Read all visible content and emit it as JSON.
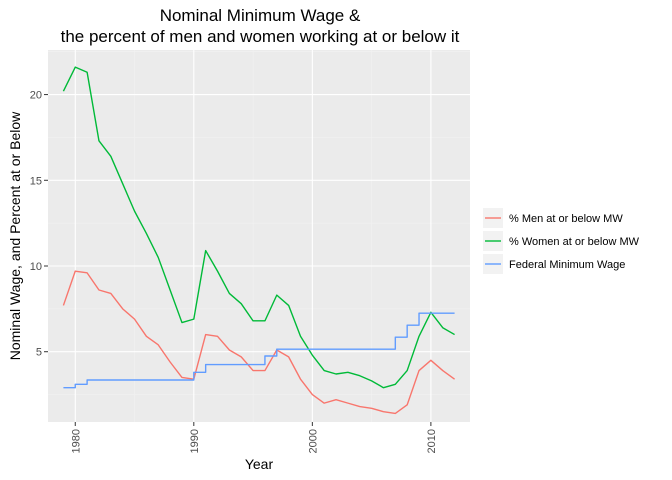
{
  "chart_data": {
    "type": "line",
    "title": [
      "Nominal Minimum Wage &",
      "the percent of men and women working at or below it"
    ],
    "xlabel": "Year",
    "ylabel": "Nominal Wage, and Percent at or Below",
    "xlim": [
      1977.7,
      2013.3
    ],
    "ylim": [
      0.9,
      22.6
    ],
    "x_ticks": [
      1980,
      1990,
      2000,
      2010
    ],
    "y_ticks": [
      5,
      10,
      15,
      20
    ],
    "grid": true,
    "legend_position": "right",
    "series": [
      {
        "name": "% Men at or below MW",
        "color": "#F8766D",
        "step": false,
        "points": [
          [
            1979,
            7.7
          ],
          [
            1980,
            9.7
          ],
          [
            1981,
            9.6
          ],
          [
            1982,
            8.6
          ],
          [
            1983,
            8.4
          ],
          [
            1984,
            7.5
          ],
          [
            1985,
            6.9
          ],
          [
            1986,
            5.9
          ],
          [
            1987,
            5.4
          ],
          [
            1988,
            4.4
          ],
          [
            1989,
            3.5
          ],
          [
            1990,
            3.4
          ],
          [
            1991,
            6.0
          ],
          [
            1992,
            5.9
          ],
          [
            1993,
            5.1
          ],
          [
            1994,
            4.7
          ],
          [
            1995,
            3.9
          ],
          [
            1996,
            3.9
          ],
          [
            1997,
            5.1
          ],
          [
            1998,
            4.7
          ],
          [
            1999,
            3.4
          ],
          [
            2000,
            2.5
          ],
          [
            2001,
            2.0
          ],
          [
            2002,
            2.2
          ],
          [
            2003,
            2.0
          ],
          [
            2004,
            1.8
          ],
          [
            2005,
            1.7
          ],
          [
            2006,
            1.5
          ],
          [
            2007,
            1.4
          ],
          [
            2008,
            1.9
          ],
          [
            2009,
            3.9
          ],
          [
            2010,
            4.5
          ],
          [
            2011,
            3.9
          ],
          [
            2012,
            3.4
          ]
        ]
      },
      {
        "name": "% Women at or below MW",
        "color": "#00BA38",
        "step": false,
        "points": [
          [
            1979,
            20.2
          ],
          [
            1980,
            21.6
          ],
          [
            1981,
            21.3
          ],
          [
            1982,
            17.3
          ],
          [
            1983,
            16.4
          ],
          [
            1984,
            14.8
          ],
          [
            1985,
            13.2
          ],
          [
            1986,
            11.9
          ],
          [
            1987,
            10.5
          ],
          [
            1988,
            8.6
          ],
          [
            1989,
            6.7
          ],
          [
            1990,
            6.9
          ],
          [
            1991,
            10.9
          ],
          [
            1992,
            9.7
          ],
          [
            1993,
            8.4
          ],
          [
            1994,
            7.8
          ],
          [
            1995,
            6.8
          ],
          [
            1996,
            6.8
          ],
          [
            1997,
            8.3
          ],
          [
            1998,
            7.7
          ],
          [
            1999,
            5.9
          ],
          [
            2000,
            4.8
          ],
          [
            2001,
            3.9
          ],
          [
            2002,
            3.7
          ],
          [
            2003,
            3.8
          ],
          [
            2004,
            3.6
          ],
          [
            2005,
            3.3
          ],
          [
            2006,
            2.9
          ],
          [
            2007,
            3.1
          ],
          [
            2008,
            3.9
          ],
          [
            2009,
            5.9
          ],
          [
            2010,
            7.3
          ],
          [
            2011,
            6.4
          ],
          [
            2012,
            6.0
          ]
        ]
      },
      {
        "name": "Federal Minimum Wage",
        "color": "#619CFF",
        "step": true,
        "points": [
          [
            1979,
            2.9
          ],
          [
            1980,
            3.1
          ],
          [
            1981,
            3.35
          ],
          [
            1982,
            3.35
          ],
          [
            1983,
            3.35
          ],
          [
            1984,
            3.35
          ],
          [
            1985,
            3.35
          ],
          [
            1986,
            3.35
          ],
          [
            1987,
            3.35
          ],
          [
            1988,
            3.35
          ],
          [
            1989,
            3.35
          ],
          [
            1990,
            3.8
          ],
          [
            1991,
            4.25
          ],
          [
            1992,
            4.25
          ],
          [
            1993,
            4.25
          ],
          [
            1994,
            4.25
          ],
          [
            1995,
            4.25
          ],
          [
            1996,
            4.75
          ],
          [
            1997,
            5.15
          ],
          [
            1998,
            5.15
          ],
          [
            1999,
            5.15
          ],
          [
            2000,
            5.15
          ],
          [
            2001,
            5.15
          ],
          [
            2002,
            5.15
          ],
          [
            2003,
            5.15
          ],
          [
            2004,
            5.15
          ],
          [
            2005,
            5.15
          ],
          [
            2006,
            5.15
          ],
          [
            2007,
            5.85
          ],
          [
            2008,
            6.55
          ],
          [
            2009,
            7.25
          ],
          [
            2010,
            7.25
          ],
          [
            2011,
            7.25
          ],
          [
            2012,
            7.25
          ]
        ]
      }
    ]
  }
}
